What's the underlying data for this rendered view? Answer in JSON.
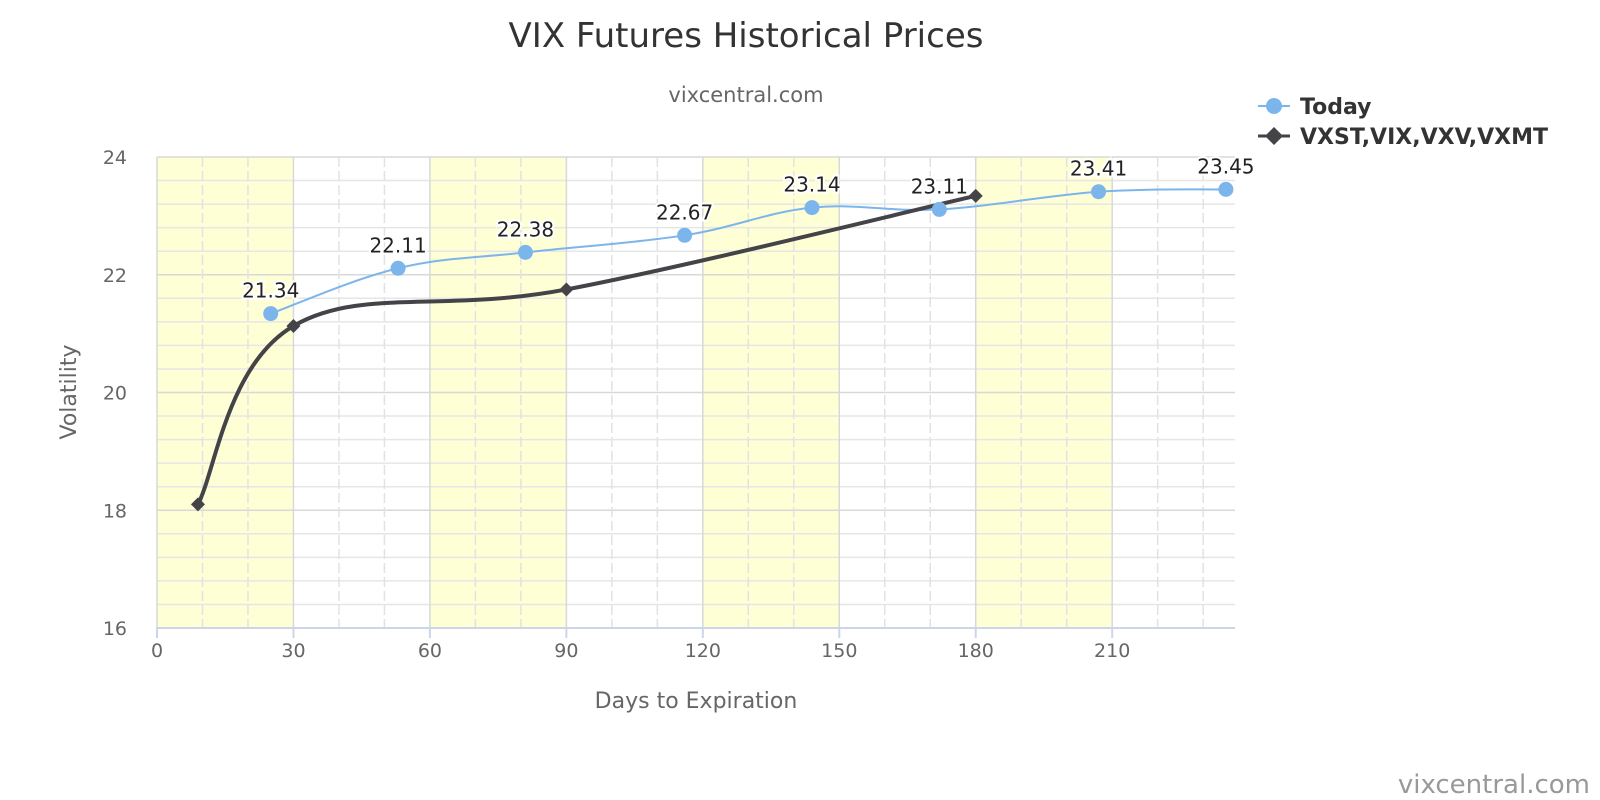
{
  "chart_data": {
    "type": "line",
    "title": "VIX Futures Historical Prices",
    "subtitle": "vixcentral.com",
    "xlabel": "Days to Expiration",
    "ylabel": "Volatility",
    "xlim": [
      0,
      237
    ],
    "ylim": [
      16,
      24
    ],
    "xticks": [
      0,
      30,
      60,
      90,
      120,
      150,
      180,
      210
    ],
    "yticks": [
      16,
      18,
      20,
      22,
      24
    ],
    "grid": true,
    "shaded_bands": [
      [
        0,
        30
      ],
      [
        60,
        90
      ],
      [
        120,
        150
      ],
      [
        180,
        210
      ]
    ],
    "legend_position": "top-right",
    "series": [
      {
        "name": "Today",
        "color": "#7cb5ec",
        "marker": "circle",
        "x": [
          25,
          53,
          81,
          116,
          144,
          172,
          207,
          235
        ],
        "y": [
          21.34,
          22.11,
          22.38,
          22.67,
          23.14,
          23.11,
          23.41,
          23.45
        ],
        "labels": [
          "21.34",
          "22.11",
          "22.38",
          "22.67",
          "23.14",
          "23.11",
          "23.41",
          "23.45"
        ]
      },
      {
        "name": "VXST,VIX,VXV,VXMT",
        "color": "#434348",
        "marker": "diamond",
        "x": [
          9,
          30,
          90,
          180
        ],
        "y": [
          18.1,
          21.13,
          21.75,
          23.34
        ]
      }
    ],
    "credit": "vixcentral.com"
  }
}
